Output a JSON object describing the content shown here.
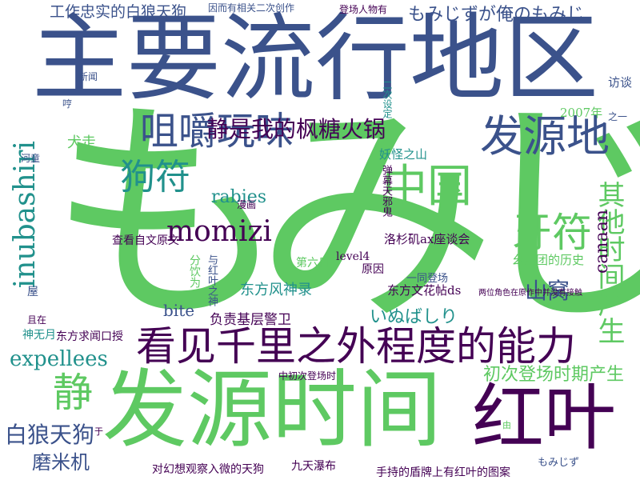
{
  "palette": {
    "dark_purple": "#440154",
    "indigo": "#3b528b",
    "teal": "#21918c",
    "green": "#5ec962",
    "yellow": "#d8e219"
  },
  "words": [
    {
      "text": "もみじ",
      "color": "#5ec962"
    },
    {
      "text": "主要流行地区",
      "color": "#3b528b"
    },
    {
      "text": "发源时间",
      "color": "#5ec962"
    },
    {
      "text": "看见千里之外程度的能力",
      "color": "#440154"
    },
    {
      "text": "红叶",
      "color": "#440154"
    },
    {
      "text": "咀嚼玩味",
      "color": "#3b528b"
    },
    {
      "text": "发源地",
      "color": "#3b528b"
    },
    {
      "text": "中国",
      "color": "#5ec962"
    },
    {
      "text": "牙符",
      "color": "#5ec962"
    },
    {
      "text": "狗符",
      "color": "#21918c"
    },
    {
      "text": "momizi",
      "color": "#440154"
    },
    {
      "text": "inubashiri",
      "color": "#21918c"
    },
    {
      "text": "静是我的枫糖火锅",
      "color": "#440154"
    },
    {
      "text": "其他时间产生",
      "color": "#5ec962"
    },
    {
      "text": "白狼天狗",
      "color": "#3b528b"
    },
    {
      "text": "静",
      "color": "#5ec962"
    },
    {
      "text": "expellees",
      "color": "#21918c"
    },
    {
      "text": "磨米机",
      "color": "#3b528b"
    },
    {
      "text": "初次登场时期产生",
      "color": "#5ec962"
    },
    {
      "text": "山窝",
      "color": "#3b528b"
    },
    {
      "text": "もみじずが俺のもみじ",
      "color": "#3b528b"
    },
    {
      "text": "工作忠实的白狼天狗",
      "color": "#3b528b"
    },
    {
      "text": "负责基层警卫",
      "color": "#440154"
    },
    {
      "text": "东方风神录",
      "color": "#21918c"
    },
    {
      "text": "いぬばしり",
      "color": "#21918c"
    },
    {
      "text": "洛杉矶ax座谈会",
      "color": "#440154"
    },
    {
      "text": "rabies",
      "color": "#21918c"
    },
    {
      "text": "canaan",
      "color": "#440154"
    },
    {
      "text": "bite",
      "color": "#3b528b"
    },
    {
      "text": "对幻想观察入微的天狗",
      "color": "#440154"
    },
    {
      "text": "手持的盾牌上有红叶的图案",
      "color": "#440154"
    },
    {
      "text": "九天瀑布",
      "color": "#440154"
    },
    {
      "text": "东方文花帖ds",
      "color": "#440154"
    },
    {
      "text": "幺乐团的历史",
      "color": "#5ec962"
    },
    {
      "text": "2007年",
      "color": "#5ec962"
    },
    {
      "text": "妖怪之山",
      "color": "#21918c"
    },
    {
      "text": "查看自文原文",
      "color": "#440154"
    },
    {
      "text": "犬走",
      "color": "#5ec962"
    },
    {
      "text": "level4",
      "color": "#440154"
    },
    {
      "text": "第六日",
      "color": "#5ec962"
    },
    {
      "text": "原因",
      "color": "#440154"
    },
    {
      "text": "一同登场",
      "color": "#3b528b"
    },
    {
      "text": "神无月",
      "color": "#21918c"
    },
    {
      "text": "东方求闻口授",
      "color": "#440154"
    },
    {
      "text": "屋",
      "color": "#3b528b"
    },
    {
      "text": "且在",
      "color": "#440154"
    },
    {
      "text": "河童",
      "color": "#3b528b"
    },
    {
      "text": "漫画",
      "color": "#440154"
    },
    {
      "text": "访谈",
      "color": "#3b528b"
    },
    {
      "text": "新闻",
      "color": "#3b528b"
    },
    {
      "text": "哼",
      "color": "#3b528b"
    },
    {
      "text": "中初次登场时",
      "color": "#440154"
    },
    {
      "text": "もみじず",
      "color": "#3b528b"
    },
    {
      "text": "二次设定",
      "color": "#21918c"
    },
    {
      "text": "因而有相关二次创作",
      "color": "#3b528b"
    },
    {
      "text": "登场人物有",
      "color": "#440154"
    },
    {
      "text": "与红叶之神",
      "color": "#3b528b"
    },
    {
      "text": "分饮为",
      "color": "#5ec962"
    },
    {
      "text": "弹幕天邪鬼",
      "color": "#440154"
    },
    {
      "text": "两位角色在原作中并没有接触",
      "color": "#440154"
    },
    {
      "text": "于",
      "color": "#440154"
    },
    {
      "text": "由",
      "color": "#5ec962"
    },
    {
      "text": "之一",
      "color": "#3b528b"
    }
  ]
}
